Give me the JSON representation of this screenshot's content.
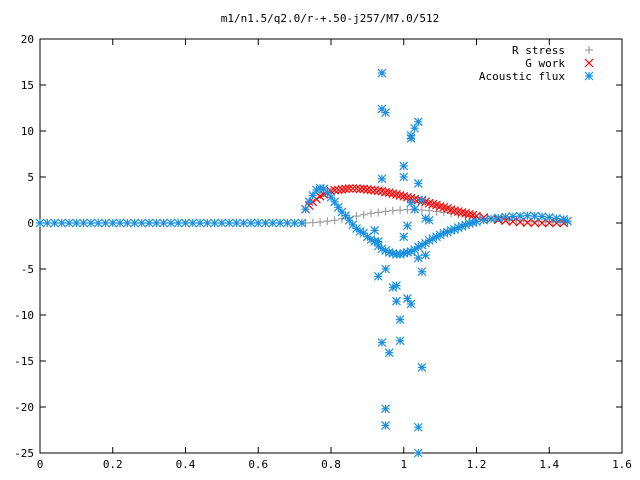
{
  "chart_data": {
    "type": "scatter",
    "title": "m1/n1.5/q2.0/r-+.50-j257/M7.0/512",
    "xlabel": "",
    "ylabel": "",
    "xlim": [
      0,
      1.6
    ],
    "ylim": [
      -25,
      20
    ],
    "x_ticks": [
      "0",
      "0.2",
      "0.4",
      "0.6",
      "0.8",
      "1",
      "1.2",
      "1.4",
      "1.6"
    ],
    "y_ticks": [
      "20",
      "15",
      "10",
      "5",
      "0",
      "-5",
      "-10",
      "-15",
      "-20",
      "-25"
    ],
    "grid": false,
    "legend_position": "top-right",
    "series": [
      {
        "name": "R stress",
        "marker": "plus",
        "color": "#a0a0a0",
        "points": [
          [
            0.73,
            0.0
          ],
          [
            0.75,
            0.05
          ],
          [
            0.77,
            0.1
          ],
          [
            0.79,
            0.2
          ],
          [
            0.81,
            0.3
          ],
          [
            0.83,
            0.45
          ],
          [
            0.85,
            0.6
          ],
          [
            0.87,
            0.75
          ],
          [
            0.89,
            0.9
          ],
          [
            0.91,
            1.05
          ],
          [
            0.93,
            1.15
          ],
          [
            0.95,
            1.25
          ],
          [
            0.97,
            1.35
          ],
          [
            0.99,
            1.4
          ],
          [
            1.01,
            1.45
          ],
          [
            1.03,
            1.45
          ],
          [
            1.05,
            1.4
          ],
          [
            1.07,
            1.35
          ],
          [
            1.09,
            1.25
          ],
          [
            1.11,
            1.15
          ],
          [
            1.13,
            1.05
          ],
          [
            1.15,
            0.9
          ],
          [
            1.17,
            0.8
          ],
          [
            1.19,
            0.7
          ],
          [
            1.21,
            0.6
          ],
          [
            1.23,
            0.5
          ],
          [
            1.25,
            0.4
          ],
          [
            1.27,
            0.35
          ],
          [
            1.29,
            0.3
          ],
          [
            1.31,
            0.25
          ],
          [
            1.33,
            0.2
          ],
          [
            1.35,
            0.15
          ],
          [
            1.37,
            0.12
          ],
          [
            1.39,
            0.1
          ],
          [
            1.41,
            0.08
          ],
          [
            1.43,
            0.05
          ],
          [
            1.45,
            0.03
          ]
        ]
      },
      {
        "name": "G work",
        "marker": "cross",
        "color": "#ff0000",
        "points": [
          [
            0.73,
            1.5
          ],
          [
            0.74,
            1.9
          ],
          [
            0.75,
            2.3
          ],
          [
            0.76,
            2.6
          ],
          [
            0.77,
            2.9
          ],
          [
            0.78,
            3.1
          ],
          [
            0.79,
            3.3
          ],
          [
            0.8,
            3.45
          ],
          [
            0.81,
            3.55
          ],
          [
            0.82,
            3.6
          ],
          [
            0.83,
            3.65
          ],
          [
            0.84,
            3.7
          ],
          [
            0.85,
            3.75
          ],
          [
            0.86,
            3.75
          ],
          [
            0.87,
            3.75
          ],
          [
            0.88,
            3.7
          ],
          [
            0.89,
            3.7
          ],
          [
            0.9,
            3.65
          ],
          [
            0.91,
            3.6
          ],
          [
            0.92,
            3.55
          ],
          [
            0.93,
            3.5
          ],
          [
            0.94,
            3.45
          ],
          [
            0.95,
            3.35
          ],
          [
            0.96,
            3.3
          ],
          [
            0.97,
            3.2
          ],
          [
            0.98,
            3.1
          ],
          [
            0.99,
            3.0
          ],
          [
            1.0,
            2.9
          ],
          [
            1.01,
            2.8
          ],
          [
            1.02,
            2.7
          ],
          [
            1.03,
            2.6
          ],
          [
            1.04,
            2.5
          ],
          [
            1.05,
            2.4
          ],
          [
            1.06,
            2.3
          ],
          [
            1.07,
            2.15
          ],
          [
            1.08,
            2.05
          ],
          [
            1.09,
            1.95
          ],
          [
            1.1,
            1.8
          ],
          [
            1.11,
            1.7
          ],
          [
            1.12,
            1.6
          ],
          [
            1.13,
            1.45
          ],
          [
            1.14,
            1.35
          ],
          [
            1.15,
            1.25
          ],
          [
            1.16,
            1.15
          ],
          [
            1.17,
            1.05
          ],
          [
            1.18,
            0.95
          ],
          [
            1.19,
            0.85
          ],
          [
            1.2,
            0.75
          ],
          [
            1.22,
            0.6
          ],
          [
            1.24,
            0.45
          ],
          [
            1.26,
            0.35
          ],
          [
            1.28,
            0.25
          ],
          [
            1.3,
            0.15
          ],
          [
            1.32,
            0.1
          ],
          [
            1.34,
            0.05
          ],
          [
            1.36,
            0.02
          ],
          [
            1.38,
            0.0
          ],
          [
            1.4,
            0.0
          ],
          [
            1.42,
            0.0
          ],
          [
            1.44,
            0.0
          ]
        ]
      },
      {
        "name": "Acoustic flux",
        "marker": "star",
        "color": "#1a8fe0",
        "points": [
          [
            0.0,
            0.0
          ],
          [
            0.02,
            0.0
          ],
          [
            0.04,
            0.0
          ],
          [
            0.06,
            0.0
          ],
          [
            0.08,
            0.0
          ],
          [
            0.1,
            0.0
          ],
          [
            0.12,
            0.0
          ],
          [
            0.14,
            0.0
          ],
          [
            0.16,
            0.0
          ],
          [
            0.18,
            0.0
          ],
          [
            0.2,
            0.0
          ],
          [
            0.22,
            0.0
          ],
          [
            0.24,
            0.0
          ],
          [
            0.26,
            0.0
          ],
          [
            0.28,
            0.0
          ],
          [
            0.3,
            0.0
          ],
          [
            0.32,
            0.0
          ],
          [
            0.34,
            0.0
          ],
          [
            0.36,
            0.0
          ],
          [
            0.38,
            0.0
          ],
          [
            0.4,
            0.0
          ],
          [
            0.42,
            0.0
          ],
          [
            0.44,
            0.0
          ],
          [
            0.46,
            0.0
          ],
          [
            0.48,
            0.0
          ],
          [
            0.5,
            0.0
          ],
          [
            0.52,
            0.0
          ],
          [
            0.54,
            0.0
          ],
          [
            0.56,
            0.0
          ],
          [
            0.58,
            0.0
          ],
          [
            0.6,
            0.0
          ],
          [
            0.62,
            0.0
          ],
          [
            0.64,
            0.0
          ],
          [
            0.66,
            0.0
          ],
          [
            0.68,
            0.0
          ],
          [
            0.7,
            0.0
          ],
          [
            0.72,
            0.0
          ],
          [
            0.73,
            1.5
          ],
          [
            0.74,
            2.3
          ],
          [
            0.75,
            3.0
          ],
          [
            0.76,
            3.6
          ],
          [
            0.77,
            3.8
          ],
          [
            0.78,
            3.7
          ],
          [
            0.79,
            3.3
          ],
          [
            0.8,
            2.8
          ],
          [
            0.81,
            2.3
          ],
          [
            0.82,
            1.7
          ],
          [
            0.83,
            1.2
          ],
          [
            0.84,
            0.8
          ],
          [
            0.85,
            0.3
          ],
          [
            0.86,
            -0.2
          ],
          [
            0.87,
            -0.6
          ],
          [
            0.88,
            -0.9
          ],
          [
            0.89,
            -1.1
          ],
          [
            0.9,
            -1.5
          ],
          [
            0.91,
            -1.8
          ],
          [
            0.92,
            -2.0
          ],
          [
            0.93,
            -2.5
          ],
          [
            0.94,
            -2.8
          ],
          [
            0.95,
            -3.0
          ],
          [
            0.96,
            -3.2
          ],
          [
            0.97,
            -3.3
          ],
          [
            0.98,
            -3.4
          ],
          [
            0.99,
            -3.4
          ],
          [
            1.0,
            -3.3
          ],
          [
            1.01,
            -3.2
          ],
          [
            1.02,
            -3.1
          ],
          [
            1.03,
            -2.9
          ],
          [
            1.04,
            -2.6
          ],
          [
            1.05,
            -2.4
          ],
          [
            1.06,
            -2.2
          ],
          [
            1.07,
            -1.9
          ],
          [
            1.08,
            -1.7
          ],
          [
            1.09,
            -1.5
          ],
          [
            1.1,
            -1.3
          ],
          [
            1.11,
            -1.1
          ],
          [
            1.12,
            -1.0
          ],
          [
            1.13,
            -0.8
          ],
          [
            1.14,
            -0.7
          ],
          [
            1.15,
            -0.5
          ],
          [
            1.16,
            -0.35
          ],
          [
            1.17,
            -0.2
          ],
          [
            1.18,
            -0.05
          ],
          [
            1.19,
            0.05
          ],
          [
            1.2,
            0.15
          ],
          [
            1.22,
            0.3
          ],
          [
            1.24,
            0.45
          ],
          [
            1.26,
            0.55
          ],
          [
            1.28,
            0.65
          ],
          [
            1.3,
            0.7
          ],
          [
            1.32,
            0.75
          ],
          [
            1.34,
            0.8
          ],
          [
            1.36,
            0.75
          ],
          [
            1.38,
            0.7
          ],
          [
            1.4,
            0.6
          ],
          [
            1.42,
            0.5
          ],
          [
            1.44,
            0.4
          ],
          [
            1.45,
            0.2
          ],
          [
            0.94,
            16.3
          ],
          [
            0.94,
            12.4
          ],
          [
            0.95,
            12.0
          ],
          [
            0.95,
            -20.2
          ],
          [
            0.95,
            -22.0
          ],
          [
            1.04,
            -22.2
          ],
          [
            1.04,
            -25.0
          ],
          [
            1.03,
            10.3
          ],
          [
            1.04,
            11.0
          ],
          [
            1.02,
            9.5
          ],
          [
            1.02,
            9.2
          ],
          [
            1.0,
            6.2
          ],
          [
            1.04,
            4.3
          ],
          [
            0.94,
            4.8
          ],
          [
            0.96,
            -14.1
          ],
          [
            0.94,
            -13.0
          ],
          [
            1.05,
            -15.7
          ],
          [
            0.99,
            -12.8
          ],
          [
            0.99,
            -10.5
          ],
          [
            0.98,
            -8.5
          ],
          [
            1.01,
            -8.2
          ],
          [
            1.02,
            -8.8
          ],
          [
            0.97,
            -7.0
          ],
          [
            0.98,
            -6.8
          ],
          [
            0.93,
            -5.8
          ],
          [
            0.95,
            -5.0
          ],
          [
            1.05,
            -5.3
          ],
          [
            1.04,
            -3.8
          ],
          [
            1.06,
            -3.5
          ],
          [
            1.0,
            5.0
          ],
          [
            1.03,
            1.5
          ],
          [
            1.06,
            0.5
          ],
          [
            1.07,
            0.3
          ],
          [
            0.92,
            -0.8
          ],
          [
            0.93,
            -2.0
          ],
          [
            1.01,
            -0.3
          ],
          [
            1.02,
            2.2
          ],
          [
            1.05,
            2.5
          ],
          [
            1.0,
            -1.5
          ]
        ]
      }
    ]
  }
}
